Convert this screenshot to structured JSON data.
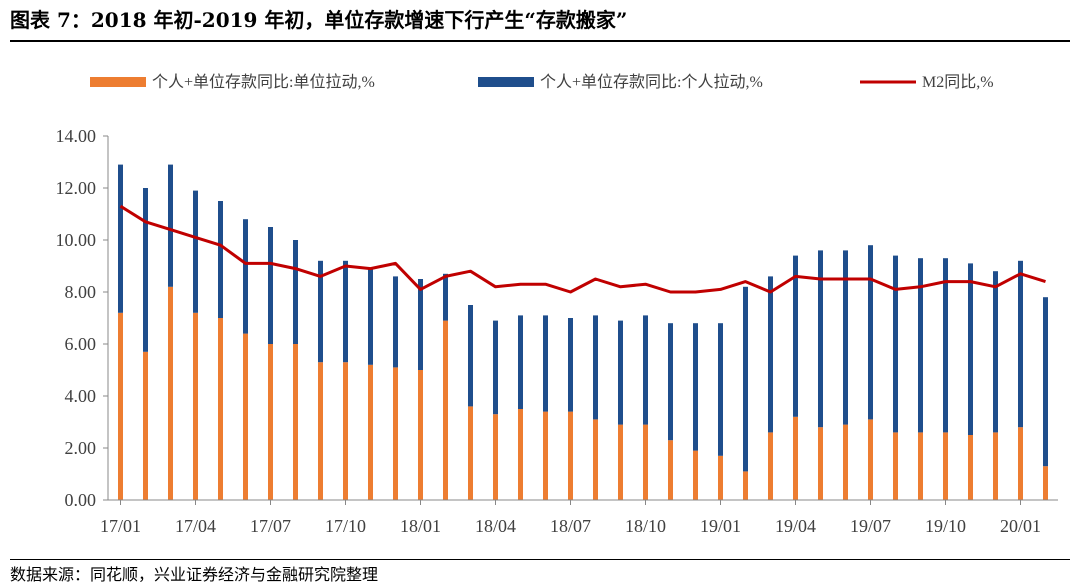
{
  "title": "图表 7：2018 年初-2019 年初，单位存款增速下行产生“存款搬家”",
  "source": "数据来源：同花顺，兴业证券经济与金融研究院整理",
  "colors": {
    "unit": "#ED7D31",
    "personal": "#1F4E8C",
    "m2": "#C00000",
    "axis": "#888888"
  },
  "chart_data": {
    "type": "bar",
    "stacked": true,
    "legend_position": "top",
    "grid": false,
    "ylim": [
      0,
      14
    ],
    "yticks": [
      "0.00",
      "2.00",
      "4.00",
      "6.00",
      "8.00",
      "10.00",
      "12.00",
      "14.00"
    ],
    "x_tick_labels": [
      "17/01",
      "17/04",
      "17/07",
      "17/10",
      "18/01",
      "18/04",
      "18/07",
      "18/10",
      "19/01",
      "19/04",
      "19/07",
      "19/10",
      "20/01"
    ],
    "categories": [
      "17/01",
      "17/02",
      "17/03",
      "17/04",
      "17/05",
      "17/06",
      "17/07",
      "17/08",
      "17/09",
      "17/10",
      "17/11",
      "17/12",
      "18/01",
      "18/02",
      "18/03",
      "18/04",
      "18/05",
      "18/06",
      "18/07",
      "18/08",
      "18/09",
      "18/10",
      "18/11",
      "18/12",
      "19/01",
      "19/02",
      "19/03",
      "19/04",
      "19/05",
      "19/06",
      "19/07",
      "19/08",
      "19/09",
      "19/10",
      "19/11",
      "19/12",
      "20/01",
      "20/02"
    ],
    "series": [
      {
        "name": "个人+单位存款同比:单位拉动,%",
        "type": "bar",
        "values": [
          7.2,
          5.7,
          8.2,
          7.2,
          7.0,
          6.4,
          6.0,
          6.0,
          5.3,
          5.3,
          5.2,
          5.1,
          5.0,
          6.9,
          3.6,
          3.3,
          3.5,
          3.4,
          3.4,
          3.1,
          2.9,
          2.9,
          2.3,
          1.9,
          1.7,
          1.1,
          2.6,
          3.2,
          2.8,
          2.9,
          3.1,
          2.6,
          2.6,
          2.6,
          2.5,
          2.6,
          2.8,
          1.3
        ]
      },
      {
        "name": "个人+单位存款同比:个人拉动,%",
        "type": "bar",
        "values": [
          5.7,
          6.3,
          4.7,
          4.7,
          4.5,
          4.4,
          4.5,
          4.0,
          3.9,
          3.9,
          3.7,
          3.5,
          3.5,
          1.8,
          3.9,
          3.6,
          3.6,
          3.7,
          3.6,
          4.0,
          4.0,
          4.2,
          4.5,
          4.9,
          5.1,
          7.1,
          6.0,
          6.2,
          6.8,
          6.7,
          6.7,
          6.8,
          6.7,
          6.7,
          6.6,
          6.2,
          6.4,
          6.5
        ]
      },
      {
        "name": "M2同比,%",
        "type": "line",
        "values": [
          11.3,
          10.7,
          10.4,
          10.1,
          9.8,
          9.1,
          9.1,
          8.9,
          8.6,
          9.0,
          8.9,
          9.1,
          8.1,
          8.6,
          8.8,
          8.2,
          8.3,
          8.3,
          8.0,
          8.5,
          8.2,
          8.3,
          8.0,
          8.0,
          8.1,
          8.4,
          8.0,
          8.6,
          8.5,
          8.5,
          8.5,
          8.1,
          8.2,
          8.4,
          8.4,
          8.2,
          8.7,
          8.4
        ]
      }
    ]
  }
}
